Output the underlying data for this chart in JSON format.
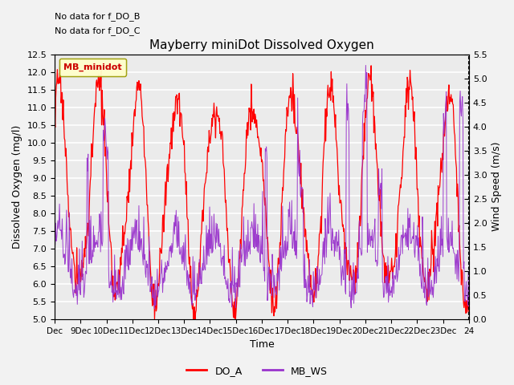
{
  "title": "Mayberry miniDot Dissolved Oxygen",
  "xlabel": "Time",
  "ylabel_left": "Dissolved Oxygen (mg/l)",
  "ylabel_right": "Wind Speed (m/s)",
  "annotations": [
    "No data for f_DO_B",
    "No data for f_DO_C"
  ],
  "legend_box_label": "MB_minidot",
  "legend_box_facecolor": "#ffffcc",
  "legend_box_edgecolor": "#999900",
  "legend_entries": [
    "DO_A",
    "MB_WS"
  ],
  "do_color": "#ff0000",
  "ws_color": "#9933cc",
  "ylim_left": [
    5.0,
    12.5
  ],
  "ylim_right": [
    0.0,
    5.5
  ],
  "yticks_left": [
    5.0,
    5.5,
    6.0,
    6.5,
    7.0,
    7.5,
    8.0,
    8.5,
    9.0,
    9.5,
    10.0,
    10.5,
    11.0,
    11.5,
    12.0,
    12.5
  ],
  "yticks_right": [
    0.0,
    0.5,
    1.0,
    1.5,
    2.0,
    2.5,
    3.0,
    3.5,
    4.0,
    4.5,
    5.0,
    5.5
  ],
  "plot_bg_color": "#ebebeb",
  "grid_color": "#ffffff",
  "fig_bg_color": "#f2f2f2",
  "xtick_labels": [
    "Dec",
    "9Dec",
    "10Dec",
    "11Dec",
    "12Dec",
    "13Dec",
    "14Dec",
    "15Dec",
    "16Dec",
    "17Dec",
    "18Dec",
    "19Dec",
    "20Dec",
    "21Dec",
    "22Dec",
    "23Dec",
    "24"
  ],
  "n_days": 16
}
